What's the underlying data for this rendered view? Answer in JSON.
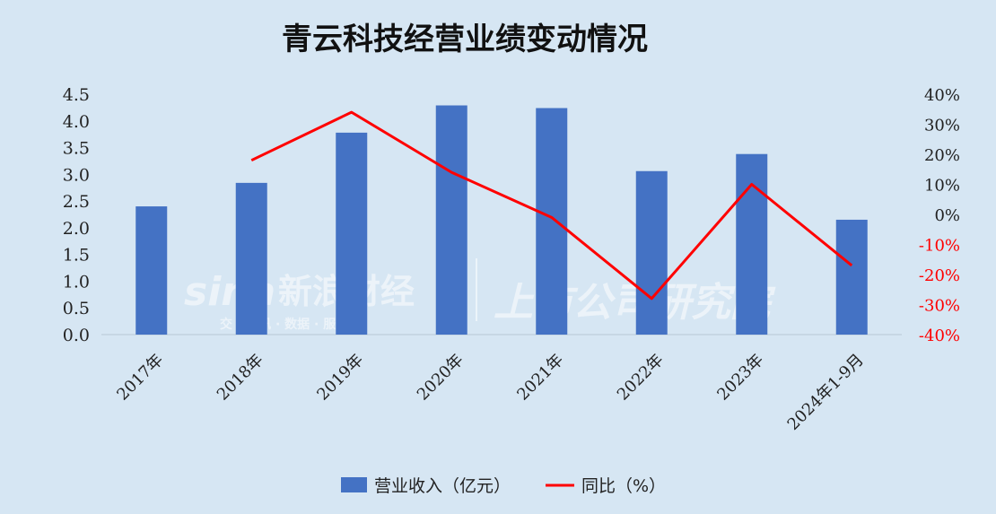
{
  "chart_data": {
    "type": "bar",
    "title": "青云科技经营业绩变动情况",
    "categories": [
      "2017年",
      "2018年",
      "2019年",
      "2020年",
      "2021年",
      "2022年",
      "2023年",
      "2024年1-9月"
    ],
    "series": [
      {
        "name": "营业收入（亿元）",
        "type": "bar",
        "axis": "left",
        "color": "#4472c4",
        "values": [
          2.4,
          2.84,
          3.78,
          4.29,
          4.24,
          3.06,
          3.38,
          2.15
        ]
      },
      {
        "name": "同比（%）",
        "type": "line",
        "axis": "right",
        "color": "#ff0000",
        "values": [
          null,
          18,
          34,
          14,
          -1,
          -28,
          10,
          -17
        ]
      }
    ],
    "y_left": {
      "ylim": [
        0,
        4.5
      ],
      "ticks": [
        "0.0",
        "0.5",
        "1.0",
        "1.5",
        "2.0",
        "2.5",
        "3.0",
        "3.5",
        "4.0",
        "4.5"
      ]
    },
    "y_right": {
      "ylim": [
        -40,
        40
      ],
      "ticks": [
        "-40%",
        "-30%",
        "-20%",
        "-10%",
        "0%",
        "10%",
        "20%",
        "30%",
        "40%"
      ],
      "negative_color": "#ff0000",
      "positive_color": "#222222"
    },
    "legend_position": "bottom-center",
    "grid": false
  },
  "watermark": {
    "logo_text": "sina",
    "brand_text": "新浪财经",
    "sub_text": "交 · 资讯 · 数据 · 服务",
    "brand2_text": "上市公司研究院"
  }
}
